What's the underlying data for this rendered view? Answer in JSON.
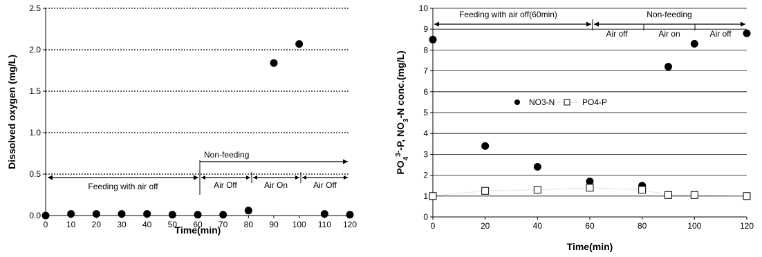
{
  "chart_data": [
    {
      "type": "scatter",
      "xlabel": "Time(min)",
      "ylabel": "Dissolved oxygen (mg/L)",
      "xlim": [
        0,
        120
      ],
      "ylim": [
        0,
        2.5
      ],
      "x_ticks": [
        "0",
        "10",
        "20",
        "30",
        "40",
        "50",
        "60",
        "70",
        "80",
        "90",
        "100",
        "110",
        "120"
      ],
      "y_ticks": [
        "0.0",
        "0.5",
        "1.0",
        "1.5",
        "2.0",
        "2.5"
      ],
      "grid": "horizontal dotted",
      "series": [
        {
          "x": [
            0,
            10,
            20,
            30,
            40,
            50,
            60,
            70,
            80,
            90,
            100,
            110,
            120
          ],
          "y": [
            0.0,
            0.02,
            0.02,
            0.02,
            0.02,
            0.01,
            0.01,
            0.01,
            0.06,
            1.84,
            2.07,
            0.02,
            0.01
          ],
          "marker": "filled-circle",
          "color": "#000000"
        }
      ],
      "annotations": {
        "feeding": "Feeding with air off",
        "non_feeding": "Non-feeding",
        "air_off_1": "Air Off",
        "air_on": "Air On",
        "air_off_2": "Air Off"
      }
    },
    {
      "type": "scatter",
      "xlabel": "Time(min)",
      "ylabel_parts": {
        "po": "PO",
        "po_sub": "4",
        "po_sup": "3-",
        "mid": "-P, NO",
        "no_sub": "3",
        "end": "-N conc.(mg/L)"
      },
      "xlim": [
        0,
        120
      ],
      "ylim": [
        0,
        10
      ],
      "x_ticks": [
        "0",
        "20",
        "40",
        "60",
        "80",
        "100",
        "120"
      ],
      "y_ticks": [
        "0",
        "1",
        "2",
        "3",
        "4",
        "5",
        "6",
        "7",
        "8",
        "9",
        "10"
      ],
      "grid": "horizontal solid",
      "series": [
        {
          "name": "NO3-N",
          "x": [
            0,
            20,
            40,
            60,
            80,
            90,
            100,
            120
          ],
          "y": [
            8.5,
            3.4,
            2.4,
            1.7,
            1.5,
            7.2,
            8.3,
            8.8
          ],
          "marker": "filled-circle",
          "color": "#000000"
        },
        {
          "name": "PO4-P",
          "x": [
            0,
            20,
            40,
            60,
            80,
            90,
            100,
            120
          ],
          "y": [
            1.0,
            1.25,
            1.3,
            1.4,
            1.3,
            1.05,
            1.05,
            1.0
          ],
          "marker": "open-square",
          "color": "#000000"
        }
      ],
      "legend_position": "center-left",
      "annotations": {
        "feeding": "Feeding with air off(60min)",
        "non_feeding": "Non-feeding",
        "air_off_1": "Air off",
        "air_on": "Air on",
        "air_off_2": "Air off"
      }
    }
  ]
}
